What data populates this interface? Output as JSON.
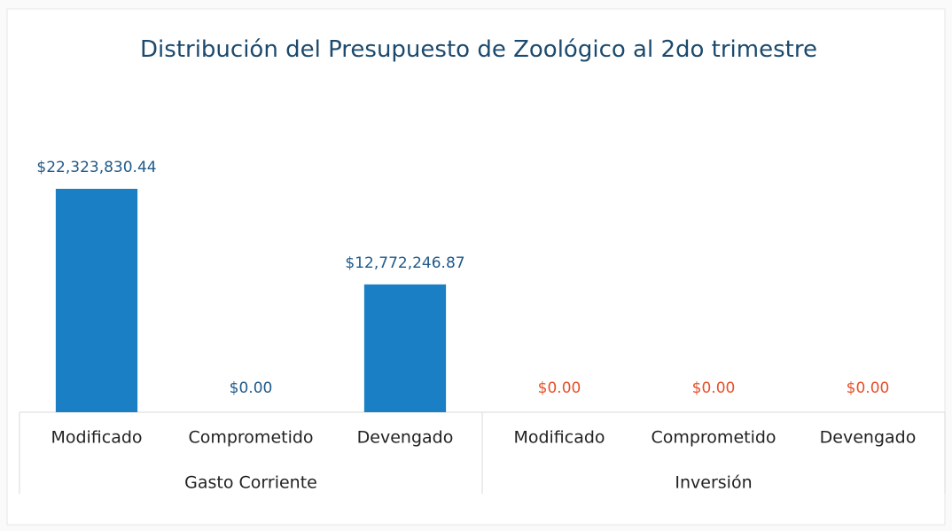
{
  "chart_data": {
    "type": "bar",
    "title": "Distribución del Presupuesto de Zoológico al 2do trimestre",
    "categories": [
      "Modificado",
      "Comprometido",
      "Devengado",
      "Modificado",
      "Comprometido",
      "Devengado"
    ],
    "groups": [
      {
        "name": "Gasto Corriente",
        "size": 3,
        "label_color": "#1f5a8a"
      },
      {
        "name": "Inversión",
        "size": 3,
        "label_color": "#e8502a"
      }
    ],
    "values": [
      22323830.44,
      0,
      12772246.87,
      0,
      0,
      0
    ],
    "value_labels": [
      "$22,323,830.44",
      "$0.00",
      "$12,772,246.87",
      "$0.00",
      "$0.00",
      "$0.00"
    ],
    "color": "#1a7fc4"
  }
}
